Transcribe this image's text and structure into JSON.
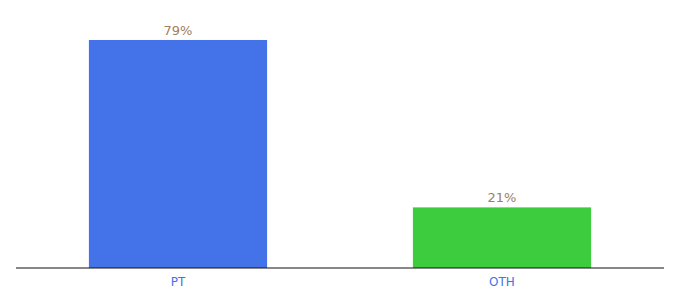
{
  "chart_data": {
    "type": "bar",
    "categories": [
      "PT",
      "OTH"
    ],
    "values": [
      79,
      21
    ],
    "value_labels": [
      "79%",
      "21%"
    ],
    "colors": [
      "#4472e8",
      "#3dcc3d"
    ],
    "ylim": [
      0,
      88
    ],
    "data_labels": true,
    "tick_labels": "x"
  }
}
